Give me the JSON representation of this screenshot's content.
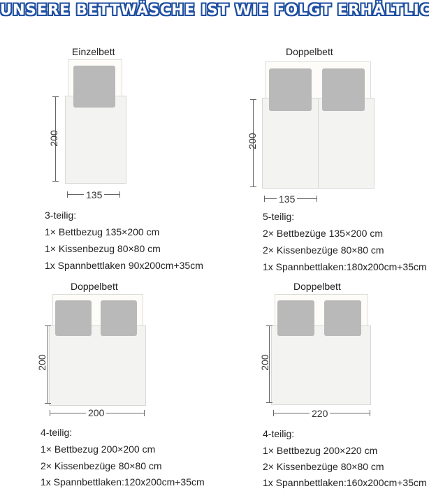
{
  "title": "UNSERE BETTWÄSCHE IST WIE FOLGT ERHÄLTLICH",
  "colors": {
    "title_fill": "#ffffff",
    "title_outline": "#1f4fa0",
    "pillow": "#b9b9b9",
    "sheet": "#f3f3f1"
  },
  "beds": [
    {
      "name": "Einzelbett",
      "height_label": "200",
      "width_label": "135",
      "specs": [
        "3-teilig:",
        "1× Bettbezug 135×200 cm",
        "1× Kissenbezug 80×80 cm",
        "1x Spannbettlaken 90x200cm+35cm"
      ]
    },
    {
      "name": "Doppelbett",
      "height_label": "200",
      "width_label": "135",
      "specs": [
        "5-teilig:",
        "2× Bettbezüge 135×200 cm",
        "2× Kissenbezüge 80×80 cm",
        "1x Spannbettlaken:180x200cm+35cm"
      ]
    },
    {
      "name": "Doppelbett",
      "height_label": "200",
      "width_label": "200",
      "specs": [
        "4-teilig:",
        "1× Bettbezug 200×200 cm",
        "2× Kissenbezüge 80×80 cm",
        "1x Spannbettlaken:120x200cm+35cm"
      ]
    },
    {
      "name": "Doppelbett",
      "height_label": "200",
      "width_label": "220",
      "specs": [
        "4-teilig:",
        "1× Bettbezug 200×220 cm",
        "2× Kissenbezüge 80×80 cm",
        "1x Spannbettlaken:160x200cm+35cm"
      ]
    }
  ]
}
